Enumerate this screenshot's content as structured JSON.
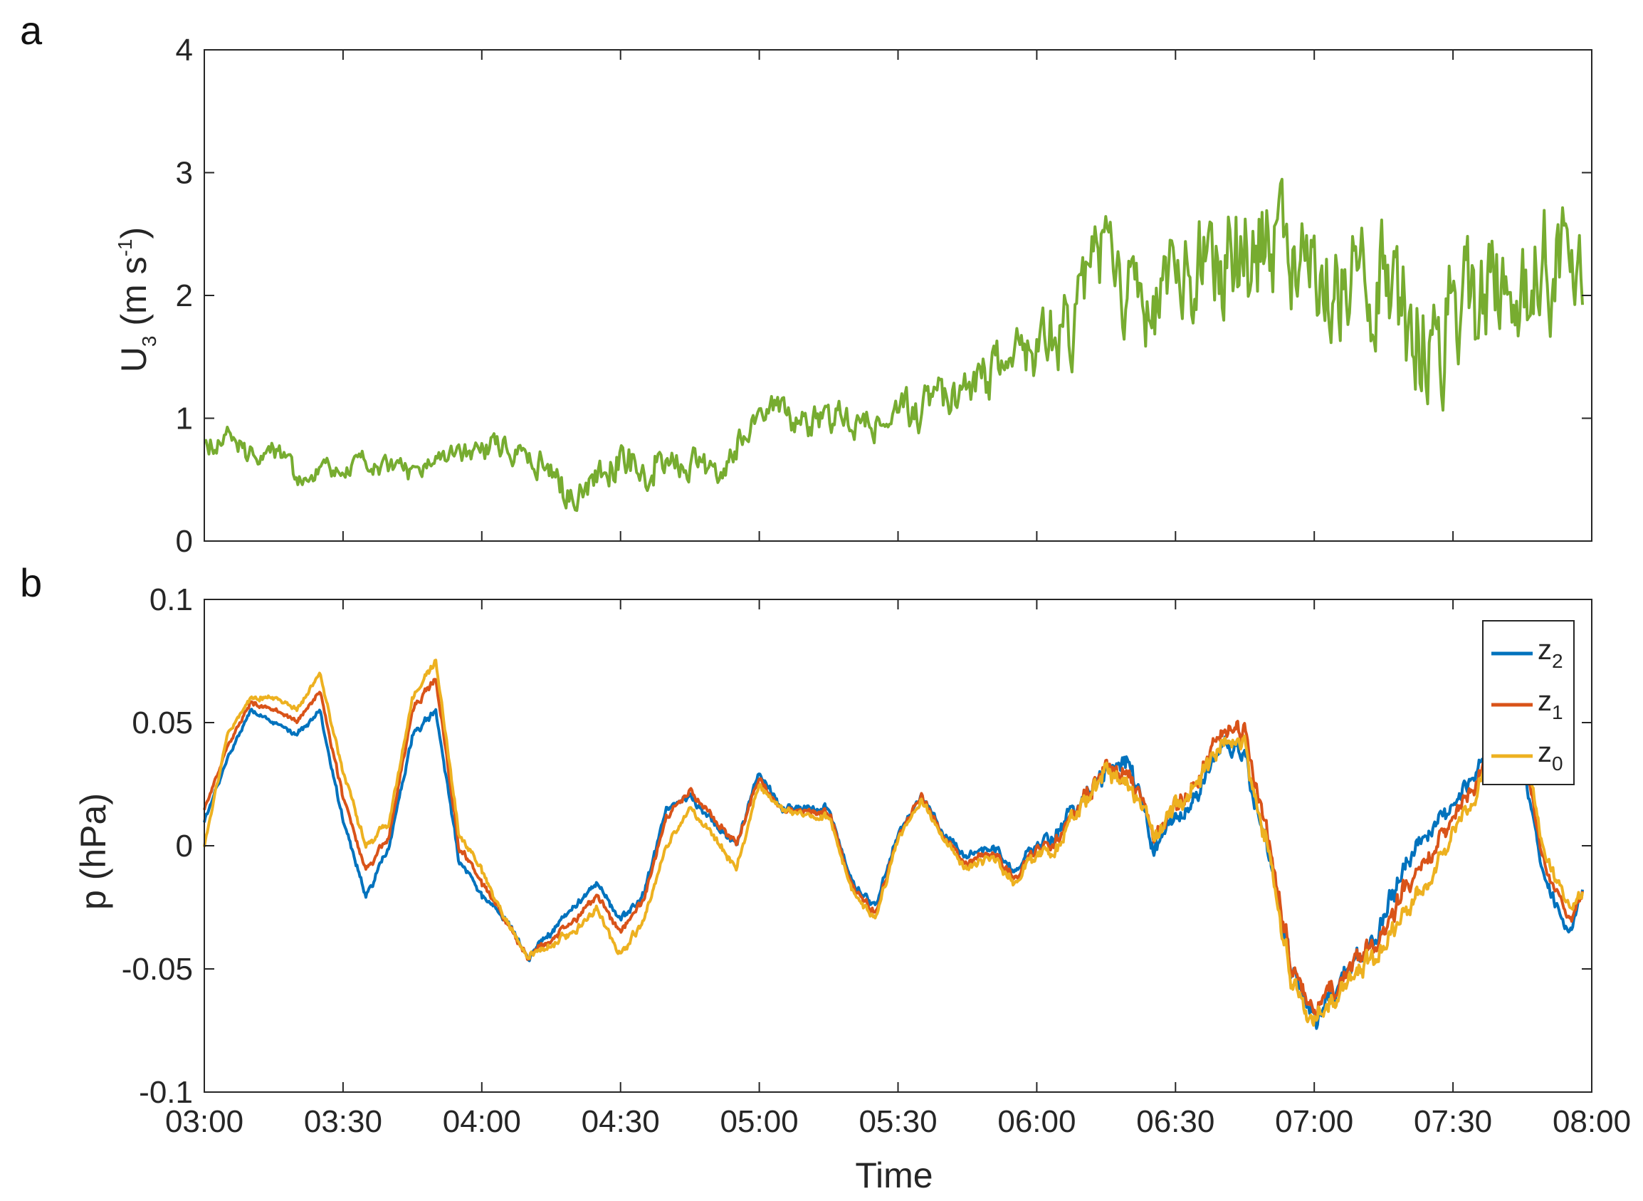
{
  "chart_data": [
    {
      "panel": "a",
      "type": "line",
      "xlabel": "",
      "ylabel": "U",
      "ylabel_subscript": "3",
      "ylabel_unit_prefix": " (m s",
      "ylabel_unit_exp": "-1",
      "ylabel_unit_suffix": ")",
      "xlim": [
        "03:00",
        "08:00"
      ],
      "ylim": [
        0,
        4
      ],
      "yticks": [
        "0",
        "1",
        "2",
        "3",
        "4"
      ],
      "xticks": [
        "03:00",
        "03:30",
        "04:00",
        "04:30",
        "05:00",
        "05:30",
        "06:00",
        "06:30",
        "07:00",
        "07:30",
        "08:00"
      ],
      "show_xtick_labels": false,
      "grid": false,
      "series": [
        {
          "color": "#77ac30",
          "x": [
            "03:00",
            "03:05",
            "03:10",
            "03:15",
            "03:20",
            "03:25",
            "03:30",
            "03:35",
            "03:40",
            "03:45",
            "03:50",
            "03:55",
            "04:00",
            "04:05",
            "04:10",
            "04:15",
            "04:20",
            "04:25",
            "04:30",
            "04:35",
            "04:40",
            "04:45",
            "04:50",
            "04:55",
            "05:00",
            "05:05",
            "05:10",
            "05:15",
            "05:20",
            "05:25",
            "05:30",
            "05:35",
            "05:40",
            "05:45",
            "05:50",
            "05:55",
            "06:00",
            "06:05",
            "06:10",
            "06:15",
            "06:20",
            "06:25",
            "06:30",
            "06:35",
            "06:40",
            "06:45",
            "06:50",
            "06:55",
            "07:00",
            "07:05",
            "07:10",
            "07:15",
            "07:20",
            "07:25",
            "07:30",
            "07:35",
            "07:40",
            "07:45",
            "07:50",
            "07:55",
            "07:58"
          ],
          "y": [
            0.8,
            0.85,
            0.7,
            0.75,
            0.5,
            0.6,
            0.55,
            0.65,
            0.6,
            0.55,
            0.6,
            0.7,
            0.75,
            0.8,
            0.7,
            0.45,
            0.4,
            0.55,
            0.7,
            0.55,
            0.75,
            0.7,
            0.6,
            0.75,
            1.1,
            1.0,
            0.95,
            1.0,
            1.0,
            0.95,
            1.1,
            1.05,
            1.15,
            1.2,
            1.35,
            1.45,
            1.6,
            1.7,
            2.0,
            2.3,
            1.95,
            1.8,
            2.1,
            2.2,
            2.25,
            2.3,
            2.5,
            2.4,
            2.3,
            2.2,
            2.05,
            2.2,
            1.8,
            1.7,
            1.9,
            1.8,
            2.1,
            2.0,
            2.3,
            2.2,
            2.5
          ],
          "noise_amplitude": [
            0.12,
            0.12,
            0.12,
            0.1,
            0.1,
            0.1,
            0.1,
            0.1,
            0.1,
            0.1,
            0.1,
            0.1,
            0.12,
            0.12,
            0.15,
            0.2,
            0.15,
            0.15,
            0.2,
            0.2,
            0.2,
            0.2,
            0.15,
            0.15,
            0.15,
            0.15,
            0.15,
            0.15,
            0.15,
            0.15,
            0.15,
            0.2,
            0.2,
            0.2,
            0.25,
            0.25,
            0.3,
            0.4,
            0.45,
            0.5,
            0.45,
            0.4,
            0.45,
            0.5,
            0.55,
            0.6,
            0.6,
            0.6,
            0.55,
            0.55,
            0.55,
            0.55,
            0.6,
            0.6,
            0.6,
            0.55,
            0.55,
            0.55,
            0.55,
            0.6,
            0.6
          ]
        }
      ]
    },
    {
      "panel": "b",
      "type": "line",
      "xlabel": "Time",
      "ylabel": "p (hPa)",
      "xlim": [
        "03:00",
        "08:00"
      ],
      "ylim": [
        -0.1,
        0.1
      ],
      "yticks": [
        "-0.1",
        "-0.05",
        "0",
        "0.05",
        "0.1"
      ],
      "xticks": [
        "03:00",
        "03:30",
        "04:00",
        "04:30",
        "05:00",
        "05:30",
        "06:00",
        "06:30",
        "07:00",
        "07:30",
        "08:00"
      ],
      "show_xtick_labels": true,
      "grid": false,
      "legend_position": "top-right",
      "x": [
        "03:00",
        "03:05",
        "03:10",
        "03:15",
        "03:20",
        "03:25",
        "03:30",
        "03:35",
        "03:40",
        "03:45",
        "03:50",
        "03:55",
        "04:00",
        "04:05",
        "04:10",
        "04:15",
        "04:20",
        "04:25",
        "04:30",
        "04:35",
        "04:40",
        "04:45",
        "04:50",
        "04:55",
        "05:00",
        "05:05",
        "05:10",
        "05:15",
        "05:20",
        "05:25",
        "05:30",
        "05:35",
        "05:40",
        "05:45",
        "05:50",
        "05:55",
        "06:00",
        "06:05",
        "06:10",
        "06:15",
        "06:20",
        "06:25",
        "06:30",
        "06:35",
        "06:40",
        "06:45",
        "06:50",
        "06:55",
        "07:00",
        "07:05",
        "07:10",
        "07:15",
        "07:20",
        "07:25",
        "07:30",
        "07:35",
        "07:40",
        "07:45",
        "07:50",
        "07:55",
        "07:58"
      ],
      "noise_amplitude": [
        0.002,
        0.002,
        0.002,
        0.002,
        0.002,
        0.002,
        0.003,
        0.003,
        0.003,
        0.003,
        0.003,
        0.003,
        0.003,
        0.003,
        0.003,
        0.003,
        0.003,
        0.003,
        0.003,
        0.003,
        0.003,
        0.003,
        0.003,
        0.003,
        0.003,
        0.003,
        0.003,
        0.003,
        0.003,
        0.003,
        0.003,
        0.003,
        0.003,
        0.003,
        0.004,
        0.004,
        0.005,
        0.006,
        0.008,
        0.008,
        0.008,
        0.008,
        0.008,
        0.008,
        0.009,
        0.009,
        0.009,
        0.009,
        0.008,
        0.008,
        0.008,
        0.008,
        0.007,
        0.007,
        0.007,
        0.006,
        0.006,
        0.005,
        0.005,
        0.005,
        0.005
      ],
      "series": [
        {
          "name": "z",
          "name_subscript": "2",
          "color": "#0072bd",
          "y": [
            0.01,
            0.035,
            0.055,
            0.05,
            0.045,
            0.055,
            0.01,
            -0.02,
            0.0,
            0.045,
            0.055,
            -0.005,
            -0.02,
            -0.03,
            -0.045,
            -0.035,
            -0.025,
            -0.015,
            -0.03,
            -0.02,
            0.015,
            0.02,
            0.01,
            0.0,
            0.03,
            0.015,
            0.015,
            0.015,
            -0.015,
            -0.025,
            0.005,
            0.02,
            0.005,
            -0.005,
            0.0,
            -0.01,
            0.0,
            0.005,
            0.02,
            0.03,
            0.035,
            0.0,
            0.01,
            0.02,
            0.04,
            0.035,
            0.0,
            -0.05,
            -0.07,
            -0.055,
            -0.045,
            -0.03,
            -0.005,
            0.005,
            0.015,
            0.03,
            0.05,
            0.035,
            -0.015,
            -0.035,
            -0.02
          ]
        },
        {
          "name": "z",
          "name_subscript": "1",
          "color": "#d95319",
          "y": [
            0.015,
            0.04,
            0.058,
            0.055,
            0.05,
            0.063,
            0.02,
            -0.01,
            0.005,
            0.055,
            0.068,
            0.0,
            -0.015,
            -0.03,
            -0.045,
            -0.038,
            -0.03,
            -0.02,
            -0.035,
            -0.022,
            0.012,
            0.022,
            0.012,
            0.0,
            0.028,
            0.015,
            0.014,
            0.014,
            -0.016,
            -0.028,
            0.004,
            0.02,
            0.004,
            -0.008,
            -0.002,
            -0.012,
            -0.002,
            0.002,
            0.02,
            0.03,
            0.03,
            0.005,
            0.015,
            0.025,
            0.045,
            0.045,
            0.005,
            -0.05,
            -0.065,
            -0.055,
            -0.045,
            -0.035,
            -0.015,
            -0.005,
            0.01,
            0.025,
            0.055,
            0.04,
            -0.01,
            -0.03,
            -0.02
          ]
        },
        {
          "name": "z",
          "name_subscript": "0",
          "color": "#edb120",
          "y": [
            0.0,
            0.045,
            0.06,
            0.06,
            0.055,
            0.07,
            0.03,
            0.0,
            0.01,
            0.06,
            0.075,
            0.005,
            -0.01,
            -0.03,
            -0.045,
            -0.04,
            -0.035,
            -0.025,
            -0.045,
            -0.03,
            0.0,
            0.015,
            0.005,
            -0.01,
            0.025,
            0.015,
            0.012,
            0.012,
            -0.018,
            -0.03,
            0.003,
            0.018,
            0.003,
            -0.01,
            -0.004,
            -0.014,
            -0.004,
            0.0,
            0.018,
            0.03,
            0.025,
            0.005,
            0.015,
            0.025,
            0.04,
            0.04,
            0.0,
            -0.055,
            -0.07,
            -0.06,
            -0.05,
            -0.04,
            -0.025,
            -0.015,
            0.005,
            0.02,
            0.06,
            0.045,
            -0.005,
            -0.025,
            -0.02
          ]
        }
      ]
    }
  ]
}
